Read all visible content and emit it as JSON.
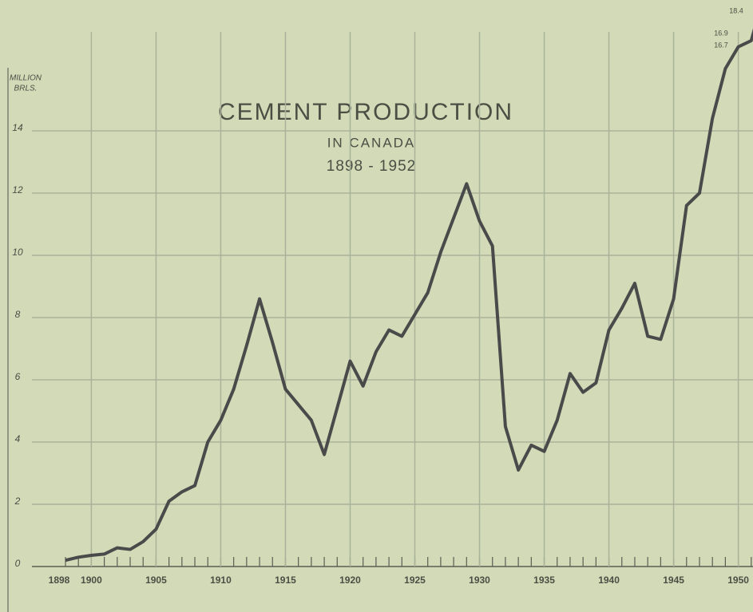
{
  "chart_data": {
    "type": "line",
    "title": "CEMENT PRODUCTION",
    "subtitle": "IN CANADA",
    "period": "1898 - 1952",
    "ylabel": [
      "MILLION",
      "BRLS."
    ],
    "x": [
      1898,
      1899,
      1900,
      1901,
      1902,
      1903,
      1904,
      1905,
      1906,
      1907,
      1908,
      1909,
      1910,
      1911,
      1912,
      1913,
      1914,
      1915,
      1916,
      1917,
      1918,
      1919,
      1920,
      1921,
      1922,
      1923,
      1924,
      1925,
      1926,
      1927,
      1928,
      1929,
      1930,
      1931,
      1932,
      1933,
      1934,
      1935,
      1936,
      1937,
      1938,
      1939,
      1940,
      1941,
      1942,
      1943,
      1944,
      1945,
      1946,
      1947,
      1948,
      1949,
      1950,
      1951,
      1952
    ],
    "series": [
      {
        "name": "Cement production",
        "color": "#4a4a4a",
        "values": [
          0.2,
          0.3,
          0.36,
          0.4,
          0.6,
          0.55,
          0.8,
          1.2,
          2.1,
          2.4,
          2.6,
          4.0,
          4.7,
          5.7,
          7.1,
          8.6,
          7.2,
          5.7,
          5.2,
          4.7,
          3.6,
          5.1,
          6.6,
          5.8,
          6.9,
          7.6,
          7.4,
          8.1,
          8.8,
          10.1,
          11.2,
          12.3,
          11.1,
          10.3,
          4.5,
          3.1,
          3.9,
          3.7,
          4.7,
          6.2,
          5.6,
          5.9,
          7.6,
          8.3,
          9.1,
          7.4,
          7.3,
          8.6,
          11.6,
          12.0,
          14.4,
          16.0,
          16.7,
          16.9,
          18.4
        ],
        "value_labels": [
          null,
          null,
          null,
          null,
          null,
          null,
          null,
          null,
          null,
          null,
          null,
          null,
          null,
          null,
          null,
          null,
          null,
          null,
          null,
          null,
          null,
          null,
          null,
          null,
          null,
          null,
          null,
          null,
          null,
          null,
          null,
          null,
          null,
          null,
          null,
          null,
          null,
          null,
          null,
          null,
          null,
          null,
          null,
          null,
          null,
          null,
          null,
          null,
          null,
          null,
          null,
          null,
          "16.7",
          "16.9",
          "18.4"
        ]
      }
    ],
    "xlim": [
      1898,
      1952
    ],
    "ylim": [
      0,
      18
    ],
    "xticks": [
      1898,
      1900,
      1905,
      1910,
      1915,
      1920,
      1925,
      1930,
      1935,
      1940,
      1945,
      1950
    ],
    "yticks": [
      0,
      2,
      4,
      6,
      8,
      10,
      12,
      14
    ],
    "grid": true
  }
}
